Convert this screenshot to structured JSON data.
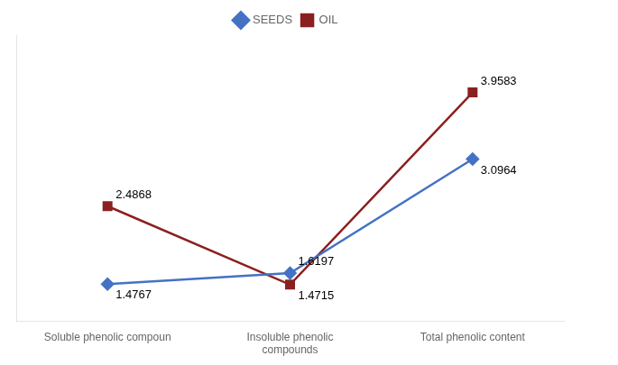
{
  "chart_data": {
    "type": "line",
    "categories": [
      "Soluble phenolic compoun",
      "Insoluble phenolic\ncompounds",
      "Total phenolic content"
    ],
    "series": [
      {
        "name": "SEEDS",
        "color": "#4472C4",
        "marker": "diamond",
        "values": [
          1.4767,
          1.6197,
          3.0964
        ]
      },
      {
        "name": "OIL",
        "color": "#8B2020",
        "marker": "square",
        "values": [
          2.4868,
          1.4715,
          3.9583
        ]
      }
    ],
    "ylim": [
      1.0,
      4.7
    ],
    "data_labels": true,
    "tick_labels": "x",
    "grid": false,
    "legend": "top"
  }
}
